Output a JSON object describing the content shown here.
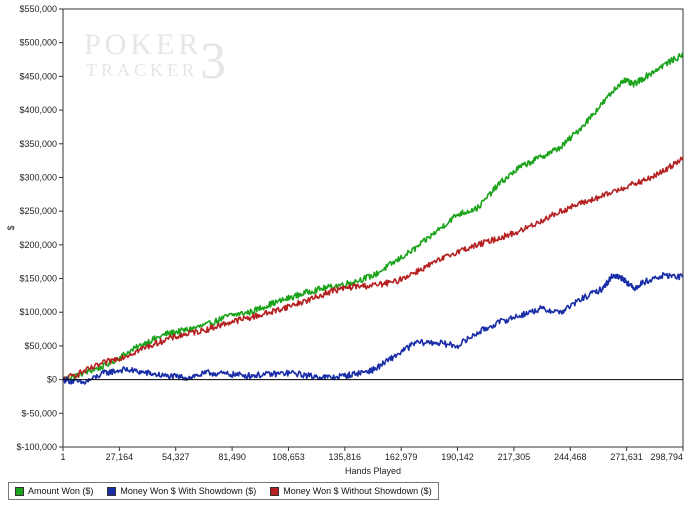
{
  "watermark": {
    "line1": "POKER",
    "line2": "TRACKER",
    "mark": "3"
  },
  "chart_data": {
    "type": "line",
    "xlabel": "Hands Played",
    "ylabel": "$",
    "xlim": [
      1,
      298794
    ],
    "ylim": [
      -100000,
      550000
    ],
    "x_ticks": [
      {
        "value": 1,
        "label": "1"
      },
      {
        "value": 27164,
        "label": "27,164"
      },
      {
        "value": 54327,
        "label": "54,327"
      },
      {
        "value": 81490,
        "label": "81,490"
      },
      {
        "value": 108653,
        "label": "108,653"
      },
      {
        "value": 135816,
        "label": "135,816"
      },
      {
        "value": 162979,
        "label": "162,979"
      },
      {
        "value": 190142,
        "label": "190,142"
      },
      {
        "value": 217305,
        "label": "217,305"
      },
      {
        "value": 244468,
        "label": "244,468"
      },
      {
        "value": 271631,
        "label": "271,631"
      },
      {
        "value": 298794,
        "label": "298,794"
      }
    ],
    "y_ticks": [
      {
        "value": 550000,
        "label": "$550,000"
      },
      {
        "value": 500000,
        "label": "$500,000"
      },
      {
        "value": 450000,
        "label": "$450,000"
      },
      {
        "value": 400000,
        "label": "$400,000"
      },
      {
        "value": 350000,
        "label": "$350,000"
      },
      {
        "value": 300000,
        "label": "$300,000"
      },
      {
        "value": 250000,
        "label": "$250,000"
      },
      {
        "value": 200000,
        "label": "$200,000"
      },
      {
        "value": 150000,
        "label": "$150,000"
      },
      {
        "value": 100000,
        "label": "$100,000"
      },
      {
        "value": 50000,
        "label": "$50,000"
      },
      {
        "value": 0,
        "label": "$0"
      },
      {
        "value": -50000,
        "label": "$-50,000"
      },
      {
        "value": -100000,
        "label": "$-100,000"
      }
    ],
    "grid": false,
    "legend_position": "bottom-left",
    "series": [
      {
        "name": "Amount Won ($)",
        "color": "#1aa31a",
        "points": [
          [
            1,
            0
          ],
          [
            10000,
            10000
          ],
          [
            20000,
            20000
          ],
          [
            30000,
            38000
          ],
          [
            40000,
            55000
          ],
          [
            50000,
            68000
          ],
          [
            60000,
            74000
          ],
          [
            70000,
            82000
          ],
          [
            80000,
            95000
          ],
          [
            90000,
            100000
          ],
          [
            100000,
            112000
          ],
          [
            110000,
            122000
          ],
          [
            120000,
            132000
          ],
          [
            130000,
            138000
          ],
          [
            140000,
            145000
          ],
          [
            150000,
            155000
          ],
          [
            160000,
            175000
          ],
          [
            170000,
            195000
          ],
          [
            180000,
            220000
          ],
          [
            190000,
            245000
          ],
          [
            200000,
            255000
          ],
          [
            210000,
            290000
          ],
          [
            220000,
            315000
          ],
          [
            230000,
            330000
          ],
          [
            240000,
            345000
          ],
          [
            250000,
            375000
          ],
          [
            260000,
            410000
          ],
          [
            270000,
            445000
          ],
          [
            275000,
            438000
          ],
          [
            280000,
            448000
          ],
          [
            290000,
            468000
          ],
          [
            298794,
            482000
          ]
        ]
      },
      {
        "name": "Money Won $ With Showdown ($)",
        "color": "#1a2ea8",
        "points": [
          [
            1,
            0
          ],
          [
            10000,
            -5000
          ],
          [
            20000,
            10000
          ],
          [
            30000,
            15000
          ],
          [
            40000,
            10000
          ],
          [
            50000,
            5000
          ],
          [
            60000,
            3000
          ],
          [
            70000,
            10000
          ],
          [
            80000,
            8000
          ],
          [
            90000,
            6000
          ],
          [
            100000,
            8000
          ],
          [
            110000,
            10000
          ],
          [
            120000,
            5000
          ],
          [
            130000,
            3000
          ],
          [
            140000,
            8000
          ],
          [
            150000,
            15000
          ],
          [
            160000,
            35000
          ],
          [
            170000,
            55000
          ],
          [
            180000,
            55000
          ],
          [
            190000,
            50000
          ],
          [
            200000,
            70000
          ],
          [
            210000,
            85000
          ],
          [
            220000,
            95000
          ],
          [
            230000,
            105000
          ],
          [
            240000,
            100000
          ],
          [
            250000,
            120000
          ],
          [
            260000,
            135000
          ],
          [
            265000,
            155000
          ],
          [
            270000,
            150000
          ],
          [
            275000,
            135000
          ],
          [
            280000,
            145000
          ],
          [
            290000,
            155000
          ],
          [
            298794,
            152000
          ]
        ]
      },
      {
        "name": "Money Won $ Without Showdown ($)",
        "color": "#b52020",
        "points": [
          [
            1,
            0
          ],
          [
            10000,
            12000
          ],
          [
            20000,
            25000
          ],
          [
            30000,
            35000
          ],
          [
            40000,
            48000
          ],
          [
            50000,
            60000
          ],
          [
            60000,
            68000
          ],
          [
            70000,
            75000
          ],
          [
            80000,
            85000
          ],
          [
            90000,
            92000
          ],
          [
            100000,
            100000
          ],
          [
            110000,
            110000
          ],
          [
            120000,
            120000
          ],
          [
            130000,
            132000
          ],
          [
            140000,
            138000
          ],
          [
            150000,
            140000
          ],
          [
            160000,
            145000
          ],
          [
            170000,
            160000
          ],
          [
            180000,
            175000
          ],
          [
            190000,
            190000
          ],
          [
            200000,
            200000
          ],
          [
            210000,
            210000
          ],
          [
            220000,
            220000
          ],
          [
            230000,
            235000
          ],
          [
            240000,
            250000
          ],
          [
            250000,
            262000
          ],
          [
            260000,
            272000
          ],
          [
            270000,
            285000
          ],
          [
            280000,
            295000
          ],
          [
            290000,
            310000
          ],
          [
            298794,
            330000
          ]
        ]
      }
    ]
  }
}
